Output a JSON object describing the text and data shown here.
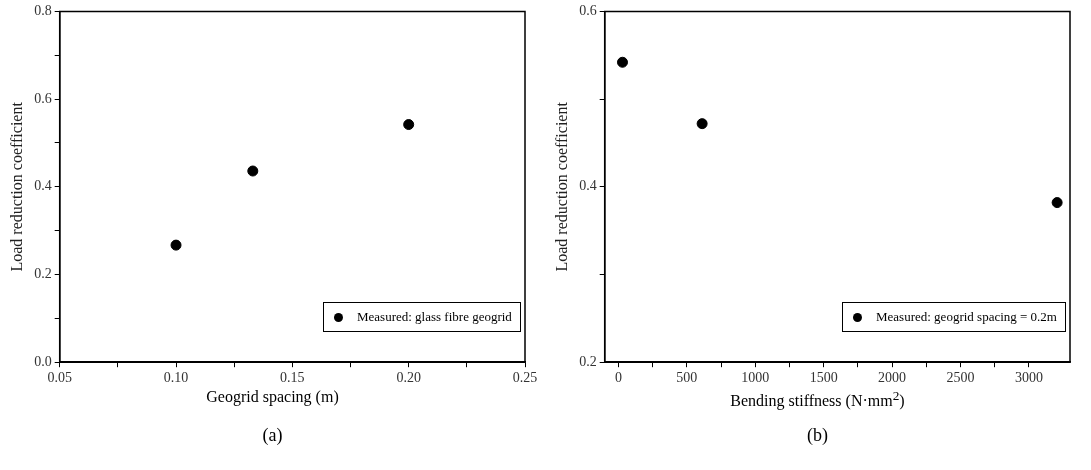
{
  "chart_data": [
    {
      "type": "scatter",
      "xlabel": "Geogrid spacing (m)",
      "ylabel": "Load reduction coefficient",
      "annotations": [
        "(a)"
      ],
      "series": [
        {
          "name": "Measured: glass fibre geogrid",
          "color": "#000000",
          "x": [
            0.1,
            0.133,
            0.2
          ],
          "values": [
            0.267,
            0.436,
            0.542
          ]
        }
      ],
      "xlim": [
        0.05,
        0.25
      ],
      "xticks": [
        {
          "value": 0.05,
          "label": "0.05"
        },
        {
          "value": 0.075,
          "label": null
        },
        {
          "value": 0.1,
          "label": "0.10"
        },
        {
          "value": 0.125,
          "label": null
        },
        {
          "value": 0.15,
          "label": "0.15"
        },
        {
          "value": 0.175,
          "label": null
        },
        {
          "value": 0.2,
          "label": "0.20"
        },
        {
          "value": 0.225,
          "label": null
        },
        {
          "value": 0.25,
          "label": "0.25"
        }
      ],
      "ylim": [
        0,
        0.8
      ],
      "yticks": [
        {
          "value": 0,
          "label": "0.0"
        },
        {
          "value": 0.1,
          "label": null
        },
        0.2,
        {
          "value": 0.3,
          "label": null
        },
        0.4,
        {
          "value": 0.5,
          "label": null
        },
        0.6,
        {
          "value": 0.7,
          "label": null
        },
        0.8
      ],
      "grid": false,
      "legend": "bottom right",
      "marker": "circle"
    },
    {
      "type": "scatter",
      "xlabel": "Bending stiffness (N·mm$^{2}$)",
      "ylabel": "Load reduction coefficient",
      "annotations": [
        "(b)"
      ],
      "series": [
        {
          "name": "Measured: geogrid spacing = 0.2m",
          "color": "#000000",
          "x": [
            30,
            612,
            3206
          ],
          "values": [
            0.542,
            0.472,
            0.382
          ]
        }
      ],
      "xlim": [
        -100,
        3300
      ],
      "xticks": [
        0,
        {
          "value": 250,
          "label": null
        },
        500,
        {
          "value": 750,
          "label": null
        },
        1000,
        {
          "value": 1250,
          "label": null
        },
        1500,
        {
          "value": 1750,
          "label": null
        },
        2000,
        {
          "value": 2250,
          "label": null
        },
        2500,
        {
          "value": 2750,
          "label": null
        },
        3000
      ],
      "ylim": [
        0.2,
        0.6
      ],
      "yticks": [
        0.2,
        {
          "value": 0.3,
          "label": null
        },
        0.4,
        {
          "value": 0.5,
          "label": null
        },
        0.6
      ],
      "grid": false,
      "legend": "bottom right",
      "marker": "circle"
    }
  ]
}
